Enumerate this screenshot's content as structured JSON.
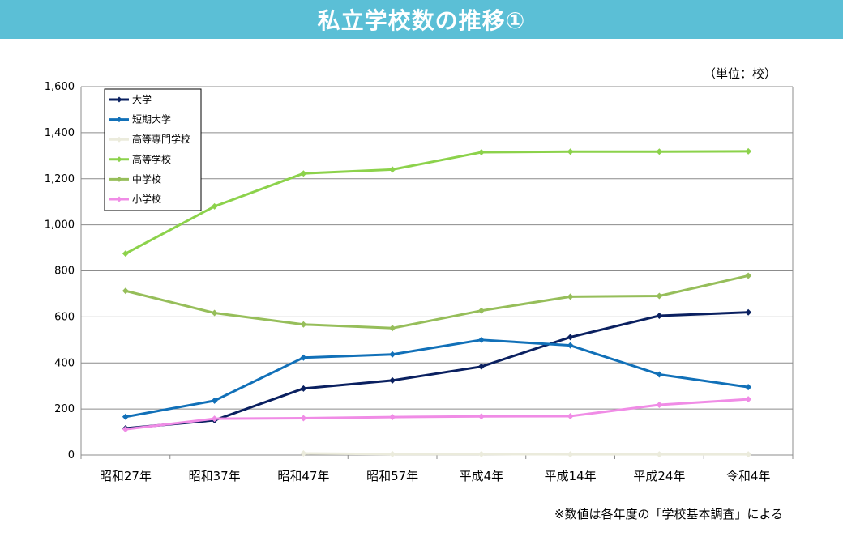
{
  "header": {
    "title": "私立学校数の推移①"
  },
  "unit_label": "（単位：校）",
  "footnote": "※数値は各年度の「学校基本調査」による",
  "chart_data": {
    "type": "line",
    "title": "私立学校数の推移①",
    "xlabel": "",
    "ylabel": "",
    "categories": [
      "昭和27年",
      "昭和37年",
      "昭和47年",
      "昭和57年",
      "平成4年",
      "平成14年",
      "平成24年",
      "令和4年"
    ],
    "ylim": [
      0,
      1600
    ],
    "yticks": [
      0,
      200,
      400,
      600,
      800,
      1000,
      1200,
      1400,
      1600
    ],
    "ytick_labels": [
      "0",
      "200",
      "400",
      "600",
      "800",
      "1,000",
      "1,200",
      "1,400",
      "1,600"
    ],
    "grid": true,
    "legend_position": "top-left",
    "series": [
      {
        "name": "大学",
        "color": "#0a2060",
        "values": [
          116,
          151,
          289,
          324,
          384,
          512,
          605,
          620
        ]
      },
      {
        "name": "短期大学",
        "color": "#1170b8",
        "values": [
          166,
          236,
          423,
          437,
          500,
          476,
          350,
          295
        ]
      },
      {
        "name": "高等専門学校",
        "color": "#ebebdc",
        "values": [
          null,
          null,
          7,
          4,
          4,
          3,
          3,
          3
        ]
      },
      {
        "name": "高等学校",
        "color": "#8cd24b",
        "values": [
          875,
          1080,
          1223,
          1240,
          1315,
          1318,
          1318,
          1319
        ]
      },
      {
        "name": "中学校",
        "color": "#96be5a",
        "values": [
          713,
          617,
          567,
          551,
          627,
          688,
          691,
          779
        ]
      },
      {
        "name": "小学校",
        "color": "#f08ce6",
        "values": [
          112,
          158,
          160,
          165,
          168,
          169,
          218,
          242
        ]
      }
    ]
  }
}
